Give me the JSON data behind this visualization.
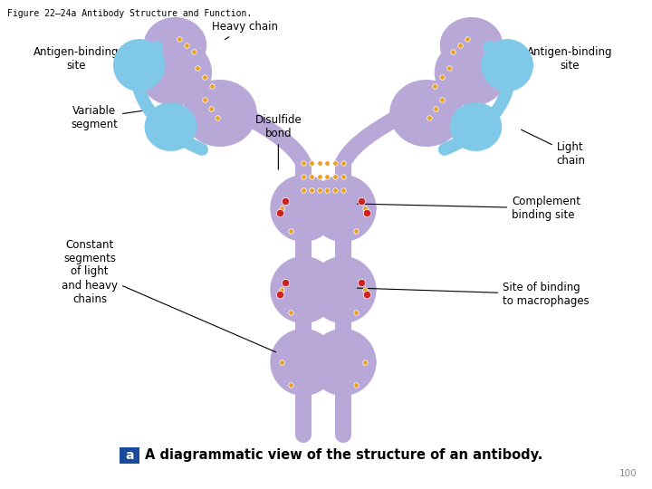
{
  "title": "Figure 22–24a Antibody Structure and Function.",
  "caption_box_color": "#1a4a9c",
  "caption_text": "A diagrammatic view of the structure of an antibody.",
  "caption_label": "a",
  "page_number": "100",
  "bg_color": "#ffffff",
  "heavy_chain_color": "#b8a8d8",
  "light_chain_color": "#80c8e8",
  "disulfide_color": "#e8a020",
  "complement_color": "#cc2222",
  "label_fontsize": 8.5,
  "title_fontsize": 7,
  "caption_fontsize": 10.5
}
